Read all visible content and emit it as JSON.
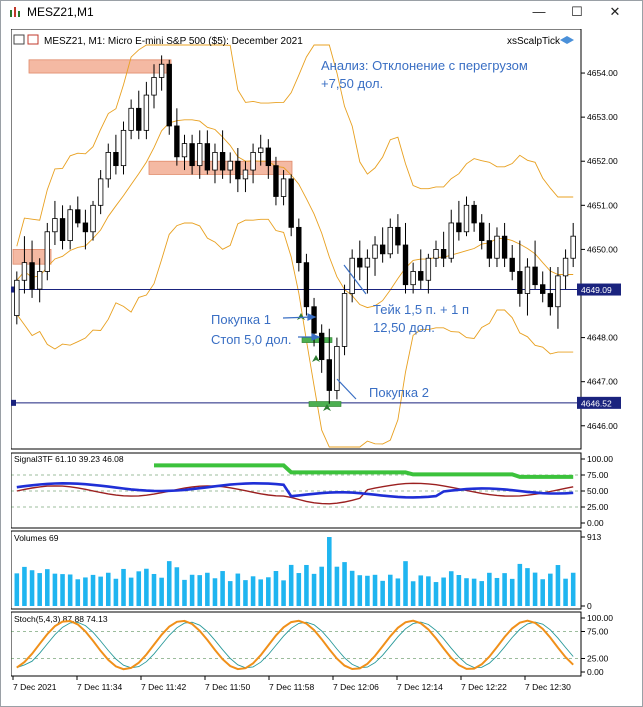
{
  "window": {
    "title": "MESZ21,M1",
    "controls": {
      "minimize": "—",
      "maximize": "☐",
      "close": "✕"
    }
  },
  "chart": {
    "header": "MESZ21, M1:  Micro E-mini S&P 500 ($5): December 2021",
    "indicator_name": "xsScalpTick",
    "annotations": {
      "analysis_line1": "Анализ: Отклонение с перегрузом",
      "analysis_line2": "+7,50 дол.",
      "buy1": "Покупка 1",
      "stop": "Стоп 5,0 дол.",
      "take_line1": "Тейк 1,5 п. + 1 п",
      "take_line2": "12,50 дол.",
      "buy2": "Покупка 2"
    },
    "price_labels": {
      "current": "4649.09",
      "entry": "4646.52"
    }
  },
  "chart_data": [
    {
      "type": "candlestick",
      "title": "MESZ21, M1:  Micro E-mini S&P 500 ($5): December 2021",
      "y_ticks": [
        "4654.00",
        "4653.00",
        "4652.00",
        "4651.00",
        "4650.00",
        "4648.00",
        "4647.00",
        "4646.00"
      ],
      "ylim": [
        4645.7,
        4654.5
      ],
      "horizontal_lines": [
        4649.09,
        4646.52
      ],
      "candles": [
        [
          4648.5,
          4649.5,
          4648.3,
          4649.3
        ],
        [
          4649.3,
          4650.3,
          4649.0,
          4649.7
        ],
        [
          4649.7,
          4650.2,
          4648.9,
          4649.1
        ],
        [
          4649.1,
          4649.8,
          4648.8,
          4649.5
        ],
        [
          4649.5,
          4650.6,
          4649.3,
          4650.4
        ],
        [
          4650.4,
          4651.1,
          4650.1,
          4650.7
        ],
        [
          4650.7,
          4651.0,
          4650.0,
          4650.2
        ],
        [
          4650.2,
          4651.0,
          4650.0,
          4650.9
        ],
        [
          4650.9,
          4651.2,
          4650.5,
          4650.6
        ],
        [
          4650.6,
          4650.9,
          4650.0,
          4650.4
        ],
        [
          4650.4,
          4651.1,
          4650.2,
          4651.0
        ],
        [
          4651.0,
          4651.8,
          4650.8,
          4651.6
        ],
        [
          4651.6,
          4652.4,
          4651.4,
          4652.2
        ],
        [
          4652.2,
          4652.6,
          4651.7,
          4651.9
        ],
        [
          4651.9,
          4652.9,
          4651.7,
          4652.7
        ],
        [
          4652.7,
          4653.4,
          4652.5,
          4653.2
        ],
        [
          4653.2,
          4653.6,
          4652.5,
          4652.7
        ],
        [
          4652.7,
          4653.8,
          4652.5,
          4653.5
        ],
        [
          4653.5,
          4654.2,
          4653.2,
          4653.9
        ],
        [
          4653.9,
          4654.4,
          4653.6,
          4654.2
        ],
        [
          4654.2,
          4654.3,
          4652.6,
          4652.8
        ],
        [
          4652.8,
          4653.2,
          4651.9,
          4652.1
        ],
        [
          4652.1,
          4652.6,
          4651.8,
          4652.4
        ],
        [
          4652.4,
          4652.6,
          4651.7,
          4651.9
        ],
        [
          4651.9,
          4652.7,
          4651.6,
          4652.4
        ],
        [
          4652.4,
          4652.7,
          4651.7,
          4651.8
        ],
        [
          4651.8,
          4652.4,
          4651.5,
          4652.2
        ],
        [
          4652.2,
          4652.7,
          4651.6,
          4651.8
        ],
        [
          4651.8,
          4652.2,
          4651.5,
          4652.0
        ],
        [
          4652.0,
          4652.3,
          4651.3,
          4651.6
        ],
        [
          4651.6,
          4652.0,
          4651.3,
          4651.8
        ],
        [
          4651.8,
          4652.4,
          4651.5,
          4652.2
        ],
        [
          4652.2,
          4652.6,
          4651.9,
          4652.3
        ],
        [
          4652.3,
          4652.5,
          4651.6,
          4651.9
        ],
        [
          4651.9,
          4652.1,
          4651.0,
          4651.2
        ],
        [
          4651.2,
          4651.8,
          4651.0,
          4651.6
        ],
        [
          4651.6,
          4651.7,
          4650.3,
          4650.5
        ],
        [
          4650.5,
          4650.7,
          4649.5,
          4649.7
        ],
        [
          4649.7,
          4649.9,
          4648.5,
          4648.7
        ],
        [
          4648.7,
          4648.9,
          4647.8,
          4648.1
        ],
        [
          4648.1,
          4648.3,
          4647.2,
          4647.5
        ],
        [
          4647.5,
          4648.2,
          4646.5,
          4646.8
        ],
        [
          4646.8,
          4648.0,
          4646.6,
          4647.8
        ],
        [
          4647.8,
          4649.2,
          4647.6,
          4649.0
        ],
        [
          4649.0,
          4650.0,
          4648.8,
          4649.8
        ],
        [
          4649.8,
          4650.2,
          4649.3,
          4649.6
        ],
        [
          4649.6,
          4650.0,
          4649.0,
          4649.8
        ],
        [
          4649.8,
          4650.3,
          4649.4,
          4650.1
        ],
        [
          4650.1,
          4650.5,
          4649.7,
          4649.9
        ],
        [
          4649.9,
          4650.7,
          4649.8,
          4650.5
        ],
        [
          4650.5,
          4650.8,
          4649.9,
          4650.1
        ],
        [
          4650.1,
          4650.6,
          4649.0,
          4649.2
        ],
        [
          4649.2,
          4649.7,
          4649.0,
          4649.5
        ],
        [
          4649.5,
          4650.0,
          4649.1,
          4649.3
        ],
        [
          4649.3,
          4649.9,
          4649.0,
          4649.8
        ],
        [
          4649.8,
          4650.2,
          4649.6,
          4650.0
        ],
        [
          4650.0,
          4650.4,
          4649.6,
          4649.8
        ],
        [
          4649.8,
          4650.9,
          4649.7,
          4650.6
        ],
        [
          4650.6,
          4651.1,
          4650.2,
          4650.4
        ],
        [
          4650.4,
          4651.2,
          4650.3,
          4651.0
        ],
        [
          4651.0,
          4651.1,
          4650.4,
          4650.6
        ],
        [
          4650.6,
          4650.8,
          4650.0,
          4650.2
        ],
        [
          4650.2,
          4650.6,
          4649.6,
          4649.8
        ],
        [
          4649.8,
          4650.5,
          4649.6,
          4650.3
        ],
        [
          4650.3,
          4650.6,
          4649.6,
          4649.8
        ],
        [
          4649.8,
          4650.1,
          4649.3,
          4649.5
        ],
        [
          4649.5,
          4650.2,
          4648.7,
          4649.0
        ],
        [
          4649.0,
          4649.8,
          4648.5,
          4649.6
        ],
        [
          4649.6,
          4650.2,
          4649.1,
          4649.2
        ],
        [
          4649.2,
          4649.5,
          4648.8,
          4649.0
        ],
        [
          4649.0,
          4649.6,
          4648.5,
          4648.7
        ],
        [
          4648.7,
          4649.6,
          4648.2,
          4649.4
        ],
        [
          4649.4,
          4650.0,
          4649.1,
          4649.8
        ],
        [
          4649.8,
          4650.6,
          4649.6,
          4650.3
        ]
      ]
    },
    {
      "type": "line",
      "title": "Signal3TF 61.10 39.23 46.08",
      "y_ticks": [
        "100.00",
        "75.00",
        "50.00",
        "25.00",
        "0.00"
      ],
      "ylim": [
        0,
        100
      ]
    },
    {
      "type": "bar",
      "title": "Volumes 69",
      "y_ticks": [
        "913",
        "0"
      ],
      "ylim": [
        0,
        913
      ]
    },
    {
      "type": "line",
      "title": "Stoch(5,4,3) 87.88 74.13",
      "y_ticks": [
        "100.00",
        "75.00",
        "25.00",
        "0.00"
      ],
      "ylim": [
        0,
        100
      ]
    }
  ],
  "x_axis": {
    "ticks": [
      "7 Dec 2021",
      "7 Dec 11:34",
      "7 Dec 11:42",
      "7 Dec 11:50",
      "7 Dec 11:58",
      "7 Dec 12:06",
      "7 Dec 12:14",
      "7 Dec 12:22",
      "7 Dec 12:30"
    ]
  },
  "colors": {
    "bull": "#ffffff",
    "bear": "#000000",
    "band": "#e8a020",
    "zone": "#f4b9a3",
    "buy_zone": "#4caf50",
    "signal_green": "#3cc23c",
    "signal_blue": "#1f2fd6",
    "signal_red": "#9b2020",
    "volume": "#1fb5f0",
    "stoch_orange": "#f0901a",
    "stoch_teal": "#2a9a9a",
    "annotation": "#3a6fc4"
  }
}
